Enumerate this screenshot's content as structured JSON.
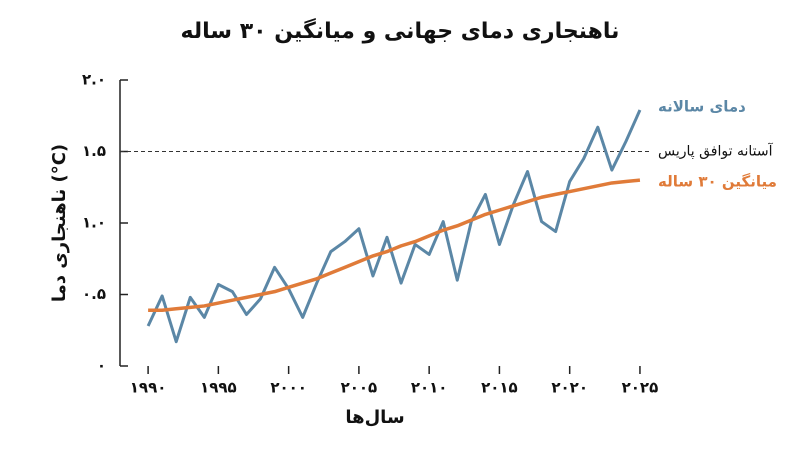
{
  "chart_data": {
    "type": "line",
    "title": "ناهنجاری دمای جهانی و میانگین ۳۰ ساله",
    "x_label": "سال‌ها",
    "y_label": "ناهنجاری دما (°C)",
    "x": [
      1990,
      1991,
      1992,
      1993,
      1994,
      1995,
      1996,
      1997,
      1998,
      1999,
      2000,
      2001,
      2002,
      2003,
      2004,
      2005,
      2006,
      2007,
      2008,
      2009,
      2010,
      2011,
      2012,
      2013,
      2014,
      2015,
      2016,
      2017,
      2018,
      2019,
      2020,
      2021,
      2022,
      2023,
      2024,
      2025
    ],
    "series": [
      {
        "name": "دمای سالانه",
        "color": "#5b87a6",
        "values": [
          0.28,
          0.49,
          0.17,
          0.48,
          0.34,
          0.57,
          0.52,
          0.36,
          0.47,
          0.69,
          0.54,
          0.34,
          0.58,
          0.8,
          0.87,
          0.96,
          0.63,
          0.9,
          0.58,
          0.85,
          0.78,
          1.01,
          0.6,
          1.01,
          1.2,
          0.85,
          1.13,
          1.36,
          1.01,
          0.94,
          1.29,
          1.45,
          1.67,
          1.37,
          1.57,
          1.79
        ]
      },
      {
        "name": "میانگین ۳۰ ساله",
        "color": "#e07b39",
        "values": [
          0.39,
          0.39,
          0.4,
          0.41,
          0.42,
          0.44,
          0.46,
          0.48,
          0.5,
          0.52,
          0.55,
          0.58,
          0.61,
          0.65,
          0.69,
          0.73,
          0.77,
          0.8,
          0.84,
          0.87,
          0.91,
          0.95,
          0.98,
          1.02,
          1.06,
          1.09,
          1.12,
          1.15,
          1.18,
          1.2,
          1.22,
          1.24,
          1.26,
          1.28,
          1.29,
          1.3
        ]
      }
    ],
    "threshold": {
      "value": 1.5,
      "label": "آستانه توافق پاریس"
    },
    "xlim": [
      1988,
      2026
    ],
    "xticks": [
      {
        "value": 1990,
        "label": "۱۹۹۰"
      },
      {
        "value": 1995,
        "label": "۱۹۹۵"
      },
      {
        "value": 2000,
        "label": "۲۰۰۰"
      },
      {
        "value": 2005,
        "label": "۲۰۰۵"
      },
      {
        "value": 2010,
        "label": "۲۰۱۰"
      },
      {
        "value": 2015,
        "label": "۲۰۱۵"
      },
      {
        "value": 2020,
        "label": "۲۰۲۰"
      },
      {
        "value": 2025,
        "label": "۲۰۲۵"
      }
    ],
    "ylim": [
      0,
      2.0
    ],
    "yticks": [
      {
        "value": 0,
        "label": "۰"
      },
      {
        "value": 0.5,
        "label": "۰.۵"
      },
      {
        "value": 1.0,
        "label": "۱.۰"
      },
      {
        "value": 1.5,
        "label": "۱.۵"
      },
      {
        "value": 2.0,
        "label": "۲.۰"
      }
    ]
  }
}
